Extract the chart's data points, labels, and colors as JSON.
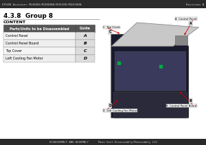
{
  "bg_color": "#f0f0f0",
  "page_bg": "#ffffff",
  "header_text": "EPSON AcuLaser M2000D/M2000DN/M2010D/M2010DN",
  "header_right": "Revision B",
  "footer_left": "DISASSEMBLY AND ASSEMBLY      Main Unit Disassembly/Reassembly 113",
  "title": "4.3.8  Group 8",
  "content_label": "CONTENT",
  "table_header_col1": "Parts/Units to be Disassembled",
  "table_header_col2": "Guide",
  "table_rows": [
    [
      "Control Panel",
      "A"
    ],
    [
      "Control Panel Board",
      "B"
    ],
    [
      "Top Cover",
      "C"
    ],
    [
      "Left Cooling Fan Motor",
      "D"
    ]
  ],
  "arrow_color": "#cc0000",
  "table_header_bg": "#555555",
  "table_header_fg": "#ffffff",
  "table_border": "#888888",
  "guide_box_bg": "#dddddd"
}
